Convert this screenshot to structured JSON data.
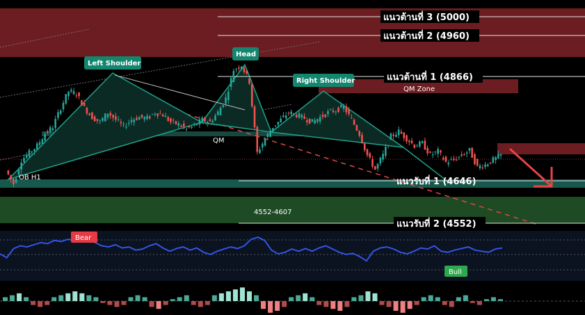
{
  "chart_data": {
    "type": "candlestick",
    "price_panel": {
      "candles": [
        4668,
        4640,
        4690,
        4705,
        4720,
        4745,
        4760,
        4800,
        4835,
        4830,
        4800,
        4780,
        4770,
        4790,
        4775,
        4760,
        4775,
        4780,
        4778,
        4790,
        4785,
        4770,
        4765,
        4755,
        4762,
        4775,
        4770,
        4790,
        4820,
        4880,
        4890,
        4855,
        4705,
        4735,
        4760,
        4775,
        4790,
        4785,
        4778,
        4770,
        4780,
        4790,
        4795,
        4802,
        4775,
        4745,
        4700,
        4670,
        4700,
        4740,
        4750,
        4735,
        4720,
        4725,
        4700,
        4708,
        4685,
        4690,
        4700,
        4710,
        4675,
        4680,
        4690,
        4700
      ],
      "levels": [
        {
          "label": "แนวต้านที่ 3 (5000)",
          "value": 5000
        },
        {
          "label": "แนวต้านที่ 2 (4960)",
          "value": 4960
        },
        {
          "label": "แนวต้านที่ 1 (4866)",
          "value": 4866
        },
        {
          "label": "แนวรับที่ 1 (4646)",
          "value": 4646
        },
        {
          "label": "แนวรับที่ 2 (4552)",
          "value": 4552
        }
      ],
      "zones": [
        {
          "label": "QM Zone"
        },
        {
          "label": "QM"
        },
        {
          "label": "OB H1"
        },
        {
          "label": "4552-4607"
        }
      ],
      "pattern_labels": [
        "Left Shoulder",
        "Head",
        "Right Shoulder"
      ]
    },
    "oscillator_panel": {
      "labels": [
        "Bear",
        "Bull"
      ],
      "values": [
        45,
        38,
        55,
        60,
        58,
        62,
        66,
        64,
        70,
        68,
        72,
        70,
        74,
        72,
        66,
        60,
        58,
        62,
        56,
        58,
        52,
        54,
        60,
        64,
        56,
        50,
        55,
        58,
        52,
        56,
        48,
        44,
        50,
        54,
        58,
        55,
        60,
        72,
        76,
        70,
        52,
        45,
        48,
        54,
        50,
        55,
        50,
        56,
        60,
        54,
        48,
        44,
        46,
        40,
        32,
        50,
        56,
        58,
        54,
        48,
        45,
        50,
        56,
        54,
        60,
        50,
        48,
        52,
        55,
        58,
        52,
        50,
        48,
        54,
        56
      ]
    },
    "histogram_panel": {
      "values": [
        2,
        3,
        4,
        2,
        -2,
        -3,
        -2,
        2,
        3,
        4,
        5,
        4,
        3,
        2,
        -1,
        -2,
        -3,
        -2,
        2,
        3,
        2,
        -3,
        -4,
        -2,
        1,
        2,
        3,
        -2,
        -3,
        -2,
        3,
        4,
        5,
        6,
        7,
        5,
        3,
        -4,
        -6,
        -5,
        -3,
        2,
        3,
        4,
        2,
        -2,
        -3,
        -4,
        -5,
        -3,
        2,
        3,
        5,
        4,
        -2,
        -3,
        -5,
        -6,
        -4,
        -2,
        2,
        3,
        2,
        -2,
        -3,
        2,
        3,
        -1,
        -2,
        1,
        2,
        1
      ]
    }
  }
}
